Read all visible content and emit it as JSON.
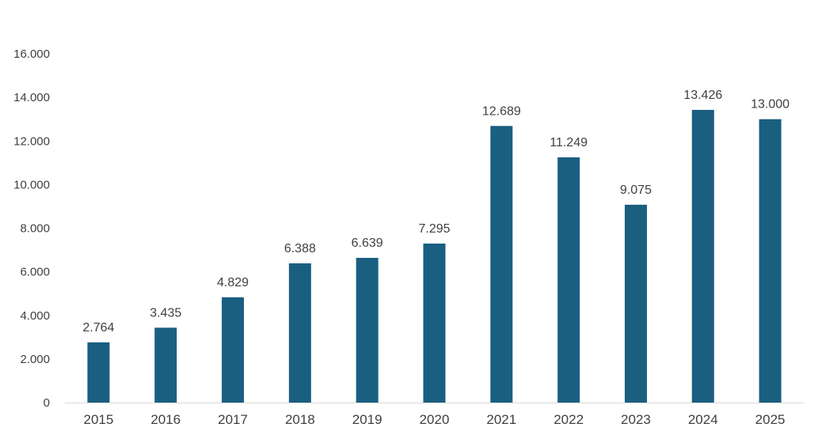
{
  "chart_data": {
    "type": "bar",
    "title": "",
    "xlabel": "",
    "ylabel": "",
    "categories": [
      "2015",
      "2016",
      "2017",
      "2018",
      "2019",
      "2020",
      "2021",
      "2022",
      "2023",
      "2024",
      "2025"
    ],
    "values": [
      2764,
      3435,
      4829,
      6388,
      6639,
      7295,
      12689,
      11249,
      9075,
      13426,
      13000
    ],
    "data_labels": [
      "2.764",
      "3.435",
      "4.829",
      "6.388",
      "6.639",
      "7.295",
      "12.689",
      "11.249",
      "9.075",
      "13.426",
      "13.000"
    ],
    "ylim": [
      0,
      16000
    ],
    "yticks": [
      0,
      2000,
      4000,
      6000,
      8000,
      10000,
      12000,
      14000,
      16000
    ],
    "ytick_labels": [
      "0",
      "2.000",
      "4.000",
      "6.000",
      "8.000",
      "10.000",
      "12.000",
      "14.000",
      "16.000"
    ],
    "grid": false,
    "legend": "none",
    "colors": {
      "bar": "#1a5e80",
      "axis": "#d9d9d9",
      "text": "#404040"
    }
  }
}
